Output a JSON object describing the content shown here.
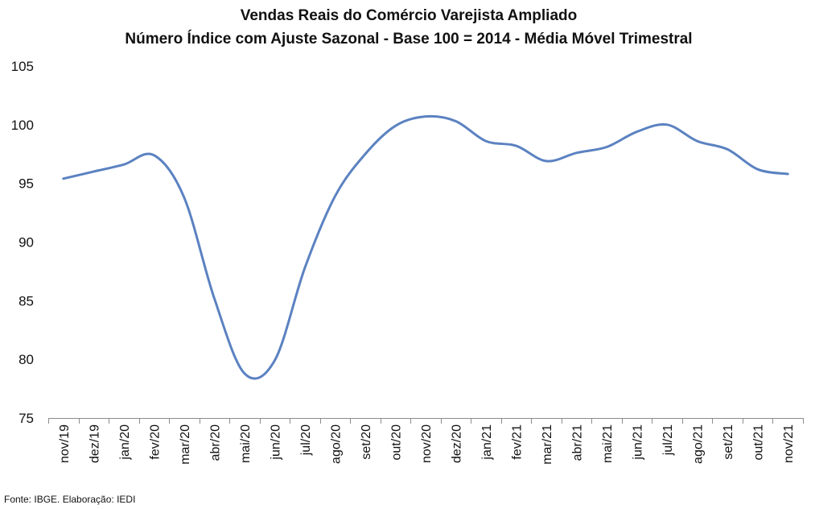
{
  "chart_data": {
    "type": "line",
    "title": "Vendas Reais do Comércio Varejista Ampliado",
    "subtitle": "Número Índice com Ajuste Sazonal - Base 100 = 2014 - Média Móvel Trimestral",
    "xlabel": "",
    "ylabel": "",
    "ylim": [
      75,
      105
    ],
    "yticks": [
      75,
      80,
      85,
      90,
      95,
      100,
      105
    ],
    "grid": false,
    "legend": "none",
    "categories": [
      "nov/19",
      "dez/19",
      "jan/20",
      "fev/20",
      "mar/20",
      "abr/20",
      "mai/20",
      "jun/20",
      "jul/20",
      "ago/20",
      "set/20",
      "out/20",
      "nov/20",
      "dez/20",
      "jan/21",
      "fev/21",
      "mar/21",
      "abr/21",
      "mai/21",
      "jun/21",
      "jul/21",
      "ago/21",
      "set/21",
      "out/21",
      "nov/21"
    ],
    "series": [
      {
        "values": [
          95.4,
          96.0,
          96.6,
          97.4,
          93.8,
          85.2,
          78.8,
          79.9,
          87.8,
          93.9,
          97.5,
          99.9,
          100.7,
          100.3,
          98.6,
          98.2,
          96.9,
          97.6,
          98.1,
          99.4,
          100.0,
          98.6,
          97.9,
          96.2,
          95.8
        ],
        "color": "#5b82c1"
      }
    ],
    "source": "Fonte: IBGE. Elaboração: IEDI"
  }
}
